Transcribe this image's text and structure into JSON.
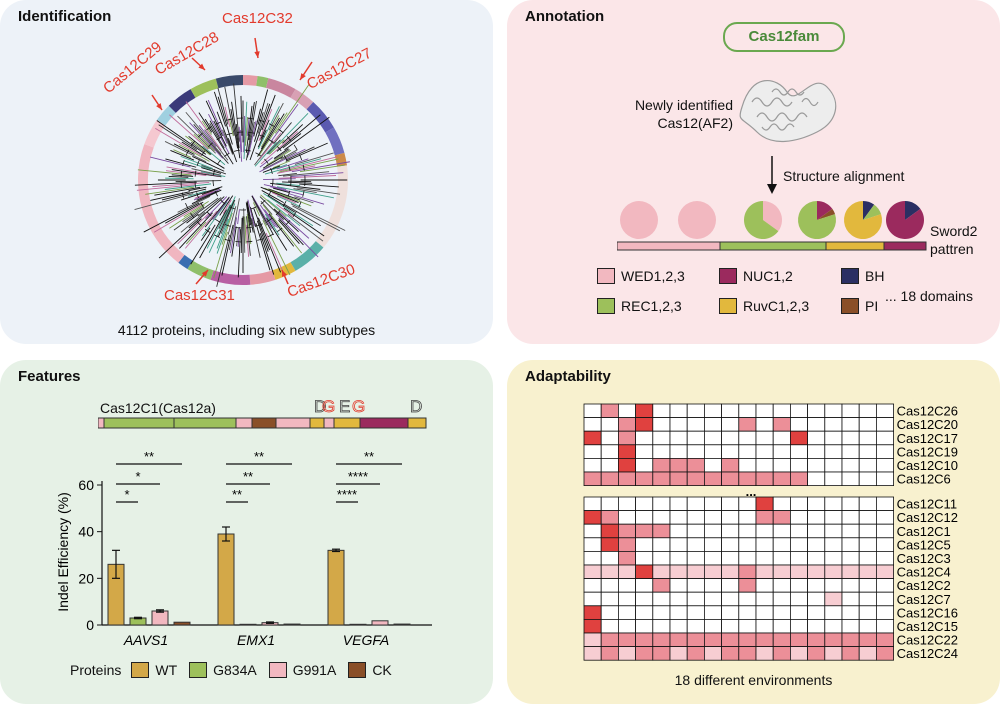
{
  "identification": {
    "title": "Identification",
    "labels": [
      "Cas12C29",
      "Cas12C28",
      "Cas12C32",
      "Cas12C27",
      "Cas12C31",
      "Cas12C30"
    ],
    "caption": "4112 proteins, including six new subtypes"
  },
  "annotation": {
    "title": "Annotation",
    "badge": "Cas12fam",
    "newly_identified": "Newly identified",
    "newly_identified_2": "Cas12(AF2)",
    "structure_alignment": "Structure alignment",
    "sword_1": "Sword2",
    "sword_2": "pattren",
    "legend": [
      {
        "label": "WED1,2,3",
        "color": "#f2b8c0"
      },
      {
        "label": "NUC1,2",
        "color": "#9b2a5e"
      },
      {
        "label": "BH",
        "color": "#2b2f63"
      },
      {
        "label": "REC1,2,3",
        "color": "#9dc05b"
      },
      {
        "label": "RuvC1,2,3",
        "color": "#e2b83d"
      },
      {
        "label": "PI",
        "color": "#8a4f28"
      }
    ],
    "more_domains": "... 18 domains"
  },
  "features": {
    "title": "Features",
    "protein_name": "Cas12C1(Cas12a)",
    "residues": [
      "D",
      "G",
      "E",
      "G",
      "D"
    ],
    "legend_title": "Proteins",
    "chart_data": {
      "type": "bar",
      "categories": [
        "AAVS1",
        "EMX1",
        "VEGFA"
      ],
      "series": [
        {
          "name": "WT",
          "values": [
            26,
            39,
            32
          ],
          "error": [
            6,
            3,
            0.5
          ]
        },
        {
          "name": "G834A",
          "values": [
            3,
            0.3,
            0.3
          ],
          "error": [
            0.3,
            0.1,
            0.1
          ]
        },
        {
          "name": "G991A",
          "values": [
            6,
            1,
            1.8
          ],
          "error": [
            0.5,
            0.3,
            0.2
          ]
        },
        {
          "name": "CK",
          "values": [
            1.2,
            0.4,
            0.4
          ],
          "error": [
            0.2,
            0.1,
            0.1
          ]
        }
      ],
      "colors": [
        "#d3a848",
        "#9dc05b",
        "#f2b8c0",
        "#8a4f28"
      ],
      "ylabel": "Indel Efficiency (%)",
      "ylim": [
        0,
        60
      ],
      "yticks": [
        0,
        20,
        40,
        60
      ],
      "significance": [
        [
          "**",
          "*",
          "*"
        ],
        [
          "**",
          "**",
          "**"
        ],
        [
          "**",
          "****",
          "****"
        ]
      ]
    }
  },
  "adaptability": {
    "title": "Adaptability",
    "ellipsis": "...",
    "caption": "18 different environments",
    "top_rows": [
      "Cas12C26",
      "Cas12C20",
      "Cas12C17",
      "Cas12C19",
      "Cas12C10",
      "Cas12C6"
    ],
    "bottom_rows": [
      "Cas12C11",
      "Cas12C12",
      "Cas12C1",
      "Cas12C5",
      "Cas12C3",
      "Cas12C4",
      "Cas12C2",
      "Cas12C7",
      "Cas12C16",
      "Cas12C15",
      "Cas12C22",
      "Cas12C24"
    ],
    "top_matrix": [
      [
        0,
        2,
        0,
        3,
        0,
        0,
        0,
        0,
        0,
        0,
        0,
        0,
        0,
        0,
        0,
        0,
        0,
        0
      ],
      [
        0,
        0,
        2,
        3,
        0,
        0,
        0,
        0,
        0,
        2,
        0,
        2,
        0,
        0,
        0,
        0,
        0,
        0
      ],
      [
        3,
        0,
        2,
        0,
        0,
        0,
        0,
        0,
        0,
        0,
        0,
        0,
        3,
        0,
        0,
        0,
        0,
        0
      ],
      [
        0,
        0,
        3,
        0,
        0,
        0,
        0,
        0,
        0,
        0,
        0,
        0,
        0,
        0,
        0,
        0,
        0,
        0
      ],
      [
        0,
        0,
        3,
        0,
        2,
        2,
        2,
        0,
        2,
        0,
        0,
        0,
        0,
        0,
        0,
        0,
        0,
        0
      ],
      [
        2,
        2,
        2,
        2,
        2,
        2,
        2,
        2,
        2,
        2,
        2,
        2,
        2,
        0,
        0,
        0,
        0,
        0
      ]
    ],
    "bottom_matrix": [
      [
        0,
        0,
        0,
        0,
        0,
        0,
        0,
        0,
        0,
        0,
        3,
        0,
        0,
        0,
        0,
        0,
        0,
        0
      ],
      [
        3,
        2,
        0,
        0,
        0,
        0,
        0,
        0,
        0,
        0,
        2,
        2,
        0,
        0,
        0,
        0,
        0,
        0
      ],
      [
        0,
        3,
        2,
        2,
        2,
        0,
        0,
        0,
        0,
        0,
        0,
        0,
        0,
        0,
        0,
        0,
        0,
        0
      ],
      [
        0,
        3,
        2,
        0,
        0,
        0,
        0,
        0,
        0,
        0,
        0,
        0,
        0,
        0,
        0,
        0,
        0,
        0
      ],
      [
        0,
        0,
        2,
        0,
        0,
        0,
        0,
        0,
        0,
        0,
        0,
        0,
        0,
        0,
        0,
        0,
        0,
        0
      ],
      [
        1,
        1,
        1,
        3,
        1,
        1,
        1,
        1,
        1,
        2,
        1,
        1,
        1,
        1,
        1,
        1,
        1,
        1
      ],
      [
        0,
        0,
        0,
        0,
        2,
        0,
        0,
        0,
        0,
        2,
        0,
        0,
        0,
        0,
        0,
        0,
        0,
        0
      ],
      [
        0,
        0,
        0,
        0,
        0,
        0,
        0,
        0,
        0,
        0,
        0,
        0,
        0,
        0,
        1,
        0,
        0,
        0
      ],
      [
        3,
        0,
        0,
        0,
        0,
        0,
        0,
        0,
        0,
        0,
        0,
        0,
        0,
        0,
        0,
        0,
        0,
        0
      ],
      [
        3,
        0,
        0,
        0,
        0,
        0,
        0,
        0,
        0,
        0,
        0,
        0,
        0,
        0,
        0,
        0,
        0,
        0
      ],
      [
        1,
        2,
        2,
        2,
        2,
        2,
        2,
        2,
        2,
        2,
        2,
        2,
        2,
        2,
        2,
        2,
        2,
        2
      ],
      [
        1,
        2,
        1,
        2,
        2,
        1,
        2,
        1,
        2,
        2,
        1,
        2,
        1,
        2,
        1,
        2,
        1,
        2
      ]
    ],
    "colors": [
      "#ffffff",
      "#f7cdd2",
      "#ec8f98",
      "#e0413f"
    ]
  }
}
